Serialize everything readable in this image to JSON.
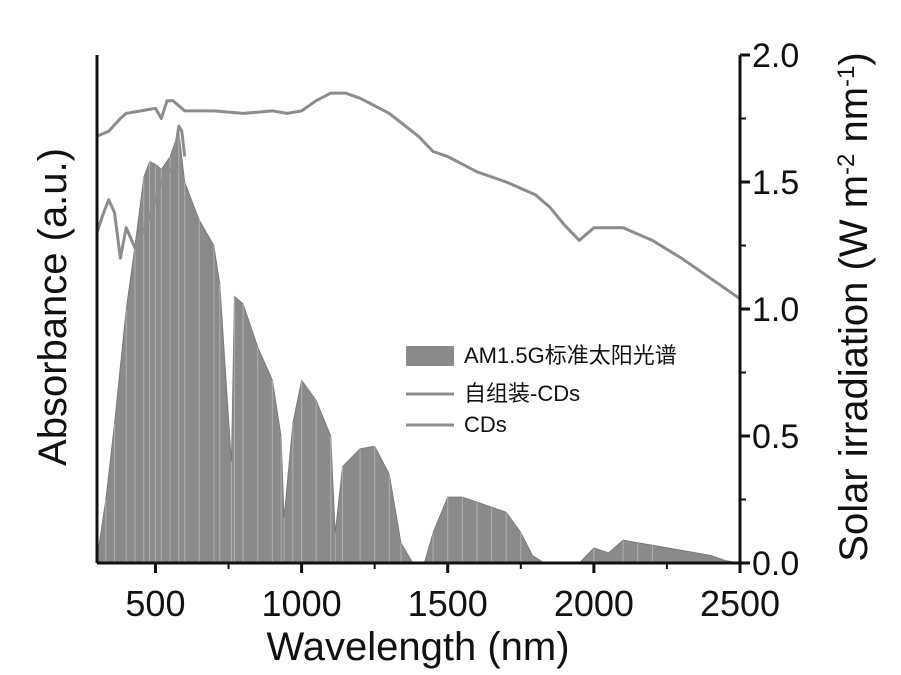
{
  "chart_data": {
    "type": "area",
    "xlabel": "Wavelength (nm)",
    "ylabel_left": "Absorbance (a.u.)",
    "ylabel_right": "Solar irradiation (W m^-2 nm^-1)",
    "ylabel_right_parts": {
      "base": "Solar irradiation (W m",
      "exp1": "-2",
      "mid": " nm",
      "exp2": "-1",
      "end": ")"
    },
    "xlim": [
      300,
      2500
    ],
    "ylim_right": [
      0.0,
      2.0
    ],
    "x_ticks": [
      500,
      1000,
      1500,
      2000,
      2500
    ],
    "x_tick_labels": [
      "500",
      "1000",
      "1500",
      "2000",
      "2500"
    ],
    "y_right_ticks": [
      0.0,
      0.5,
      1.0,
      1.5,
      2.0
    ],
    "y_right_tick_labels": [
      "0.0",
      "0.5",
      "1.0",
      "1.5",
      "2.0"
    ],
    "legend_position": "center-right",
    "series": [
      {
        "name": "AM1.5G标准太阳光谱",
        "kind": "area",
        "axis": "right",
        "color": "#8a8a8a",
        "x": [
          300,
          330,
          360,
          400,
          430,
          460,
          480,
          500,
          520,
          550,
          580,
          600,
          650,
          700,
          720,
          760,
          770,
          800,
          850,
          900,
          930,
          940,
          970,
          1000,
          1050,
          1100,
          1115,
          1140,
          1200,
          1250,
          1300,
          1340,
          1380,
          1420,
          1450,
          1500,
          1550,
          1600,
          1650,
          1700,
          1750,
          1790,
          1830,
          1880,
          1950,
          2000,
          2050,
          2100,
          2150,
          2200,
          2300,
          2400,
          2450,
          2500
        ],
        "y": [
          0.02,
          0.25,
          0.55,
          1.0,
          1.25,
          1.52,
          1.58,
          1.57,
          1.55,
          1.6,
          1.7,
          1.5,
          1.35,
          1.25,
          1.1,
          0.4,
          1.05,
          1.02,
          0.85,
          0.72,
          0.5,
          0.18,
          0.55,
          0.72,
          0.64,
          0.5,
          0.12,
          0.38,
          0.45,
          0.46,
          0.35,
          0.08,
          0.0,
          0.0,
          0.12,
          0.26,
          0.26,
          0.24,
          0.22,
          0.2,
          0.12,
          0.03,
          0.0,
          0.0,
          0.0,
          0.06,
          0.04,
          0.09,
          0.08,
          0.07,
          0.05,
          0.03,
          0.01,
          0.0
        ]
      },
      {
        "name": "自组装-CDs",
        "kind": "line",
        "axis": "left",
        "color": "#8c8c8c",
        "x": [
          300,
          340,
          380,
          400,
          450,
          500,
          520,
          540,
          560,
          600,
          700,
          800,
          900,
          950,
          1000,
          1050,
          1100,
          1150,
          1200,
          1300,
          1400,
          1450,
          1500,
          1600,
          1700,
          1800,
          1850,
          1900,
          1950,
          2000,
          2100,
          2200,
          2300,
          2400,
          2500
        ],
        "y": [
          1.68,
          1.7,
          1.75,
          1.77,
          1.78,
          1.79,
          1.75,
          1.82,
          1.82,
          1.78,
          1.78,
          1.77,
          1.78,
          1.77,
          1.78,
          1.82,
          1.85,
          1.85,
          1.83,
          1.77,
          1.68,
          1.62,
          1.6,
          1.54,
          1.5,
          1.45,
          1.4,
          1.33,
          1.27,
          1.32,
          1.32,
          1.27,
          1.2,
          1.12,
          1.04
        ]
      },
      {
        "name": "CDs",
        "kind": "line",
        "axis": "left",
        "color": "#8c8c8c",
        "x": [
          300,
          320,
          340,
          360,
          380,
          400,
          430,
          470,
          520,
          560,
          580,
          590,
          600
        ],
        "y": [
          1.3,
          1.37,
          1.43,
          1.38,
          1.2,
          1.32,
          1.24,
          1.33,
          1.5,
          1.56,
          1.72,
          1.7,
          1.6
        ]
      }
    ]
  }
}
